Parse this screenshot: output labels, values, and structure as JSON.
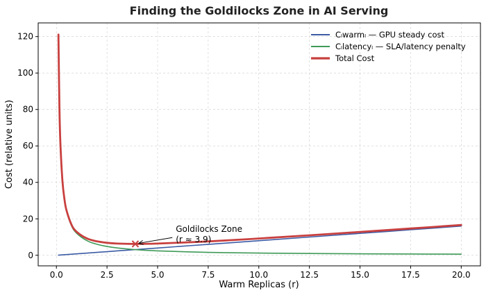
{
  "chart_data": {
    "type": "line",
    "title": "Finding the Goldilocks Zone in AI Serving",
    "xlabel": "Warm Replicas (r)",
    "ylabel": "Cost (relative units)",
    "xlim": [
      -0.9,
      20.95
    ],
    "ylim": [
      -5.8,
      127.5
    ],
    "xticks": [
      0.0,
      2.5,
      5.0,
      7.5,
      10.0,
      12.5,
      15.0,
      17.5,
      20.0
    ],
    "xtick_labels": [
      "0.0",
      "2.5",
      "5.0",
      "7.5",
      "10.0",
      "12.5",
      "15.0",
      "17.5",
      "20.0"
    ],
    "yticks": [
      0,
      20,
      40,
      60,
      80,
      100,
      120
    ],
    "ytick_labels": [
      "0",
      "20",
      "40",
      "60",
      "80",
      "100",
      "120"
    ],
    "grid": true,
    "legend_position": "top-right",
    "series": [
      {
        "name": "Cₗwarmₗ — GPU steady cost",
        "color": "#3b5ba5",
        "x": [
          0.1,
          1,
          2,
          3,
          4,
          5,
          7.5,
          10,
          12.5,
          15,
          17.5,
          20
        ],
        "y": [
          0.08,
          0.8,
          1.6,
          2.4,
          3.2,
          4.0,
          6.0,
          8.0,
          10.0,
          12.0,
          14.0,
          16.0
        ]
      },
      {
        "name": "Cₗlatencyₗ — SLA/latency penalty",
        "color": "#3e9a57",
        "x": [
          0.1,
          0.15,
          0.2,
          0.3,
          0.4,
          0.5,
          0.75,
          1,
          1.5,
          2,
          2.5,
          3,
          3.9,
          5,
          7.5,
          10,
          12.5,
          15,
          17.5,
          20
        ],
        "y": [
          121,
          80.7,
          60.5,
          40.3,
          30.3,
          24.2,
          16.1,
          12.1,
          8.07,
          6.05,
          4.84,
          4.03,
          3.1,
          2.42,
          1.61,
          1.21,
          0.97,
          0.81,
          0.69,
          0.61
        ]
      },
      {
        "name": "Total Cost",
        "color": "#c8403f",
        "x": [
          0.1,
          0.15,
          0.2,
          0.3,
          0.4,
          0.5,
          0.75,
          1,
          1.5,
          2,
          2.5,
          3,
          3.9,
          5,
          7.5,
          10,
          12.5,
          15,
          17.5,
          20
        ],
        "y": [
          121.1,
          80.8,
          60.7,
          40.6,
          30.6,
          24.6,
          16.7,
          12.9,
          9.27,
          7.65,
          6.84,
          6.43,
          6.22,
          6.42,
          7.61,
          9.21,
          10.97,
          12.81,
          14.69,
          16.61
        ]
      }
    ],
    "annotation": {
      "line1": "Goldilocks Zone",
      "line2": "(r ≈ 3.9)",
      "point_x": 3.9,
      "point_y": 6.22,
      "text_x": 5.9,
      "text_y": 10.5,
      "marker_color": "#c8403f"
    }
  }
}
